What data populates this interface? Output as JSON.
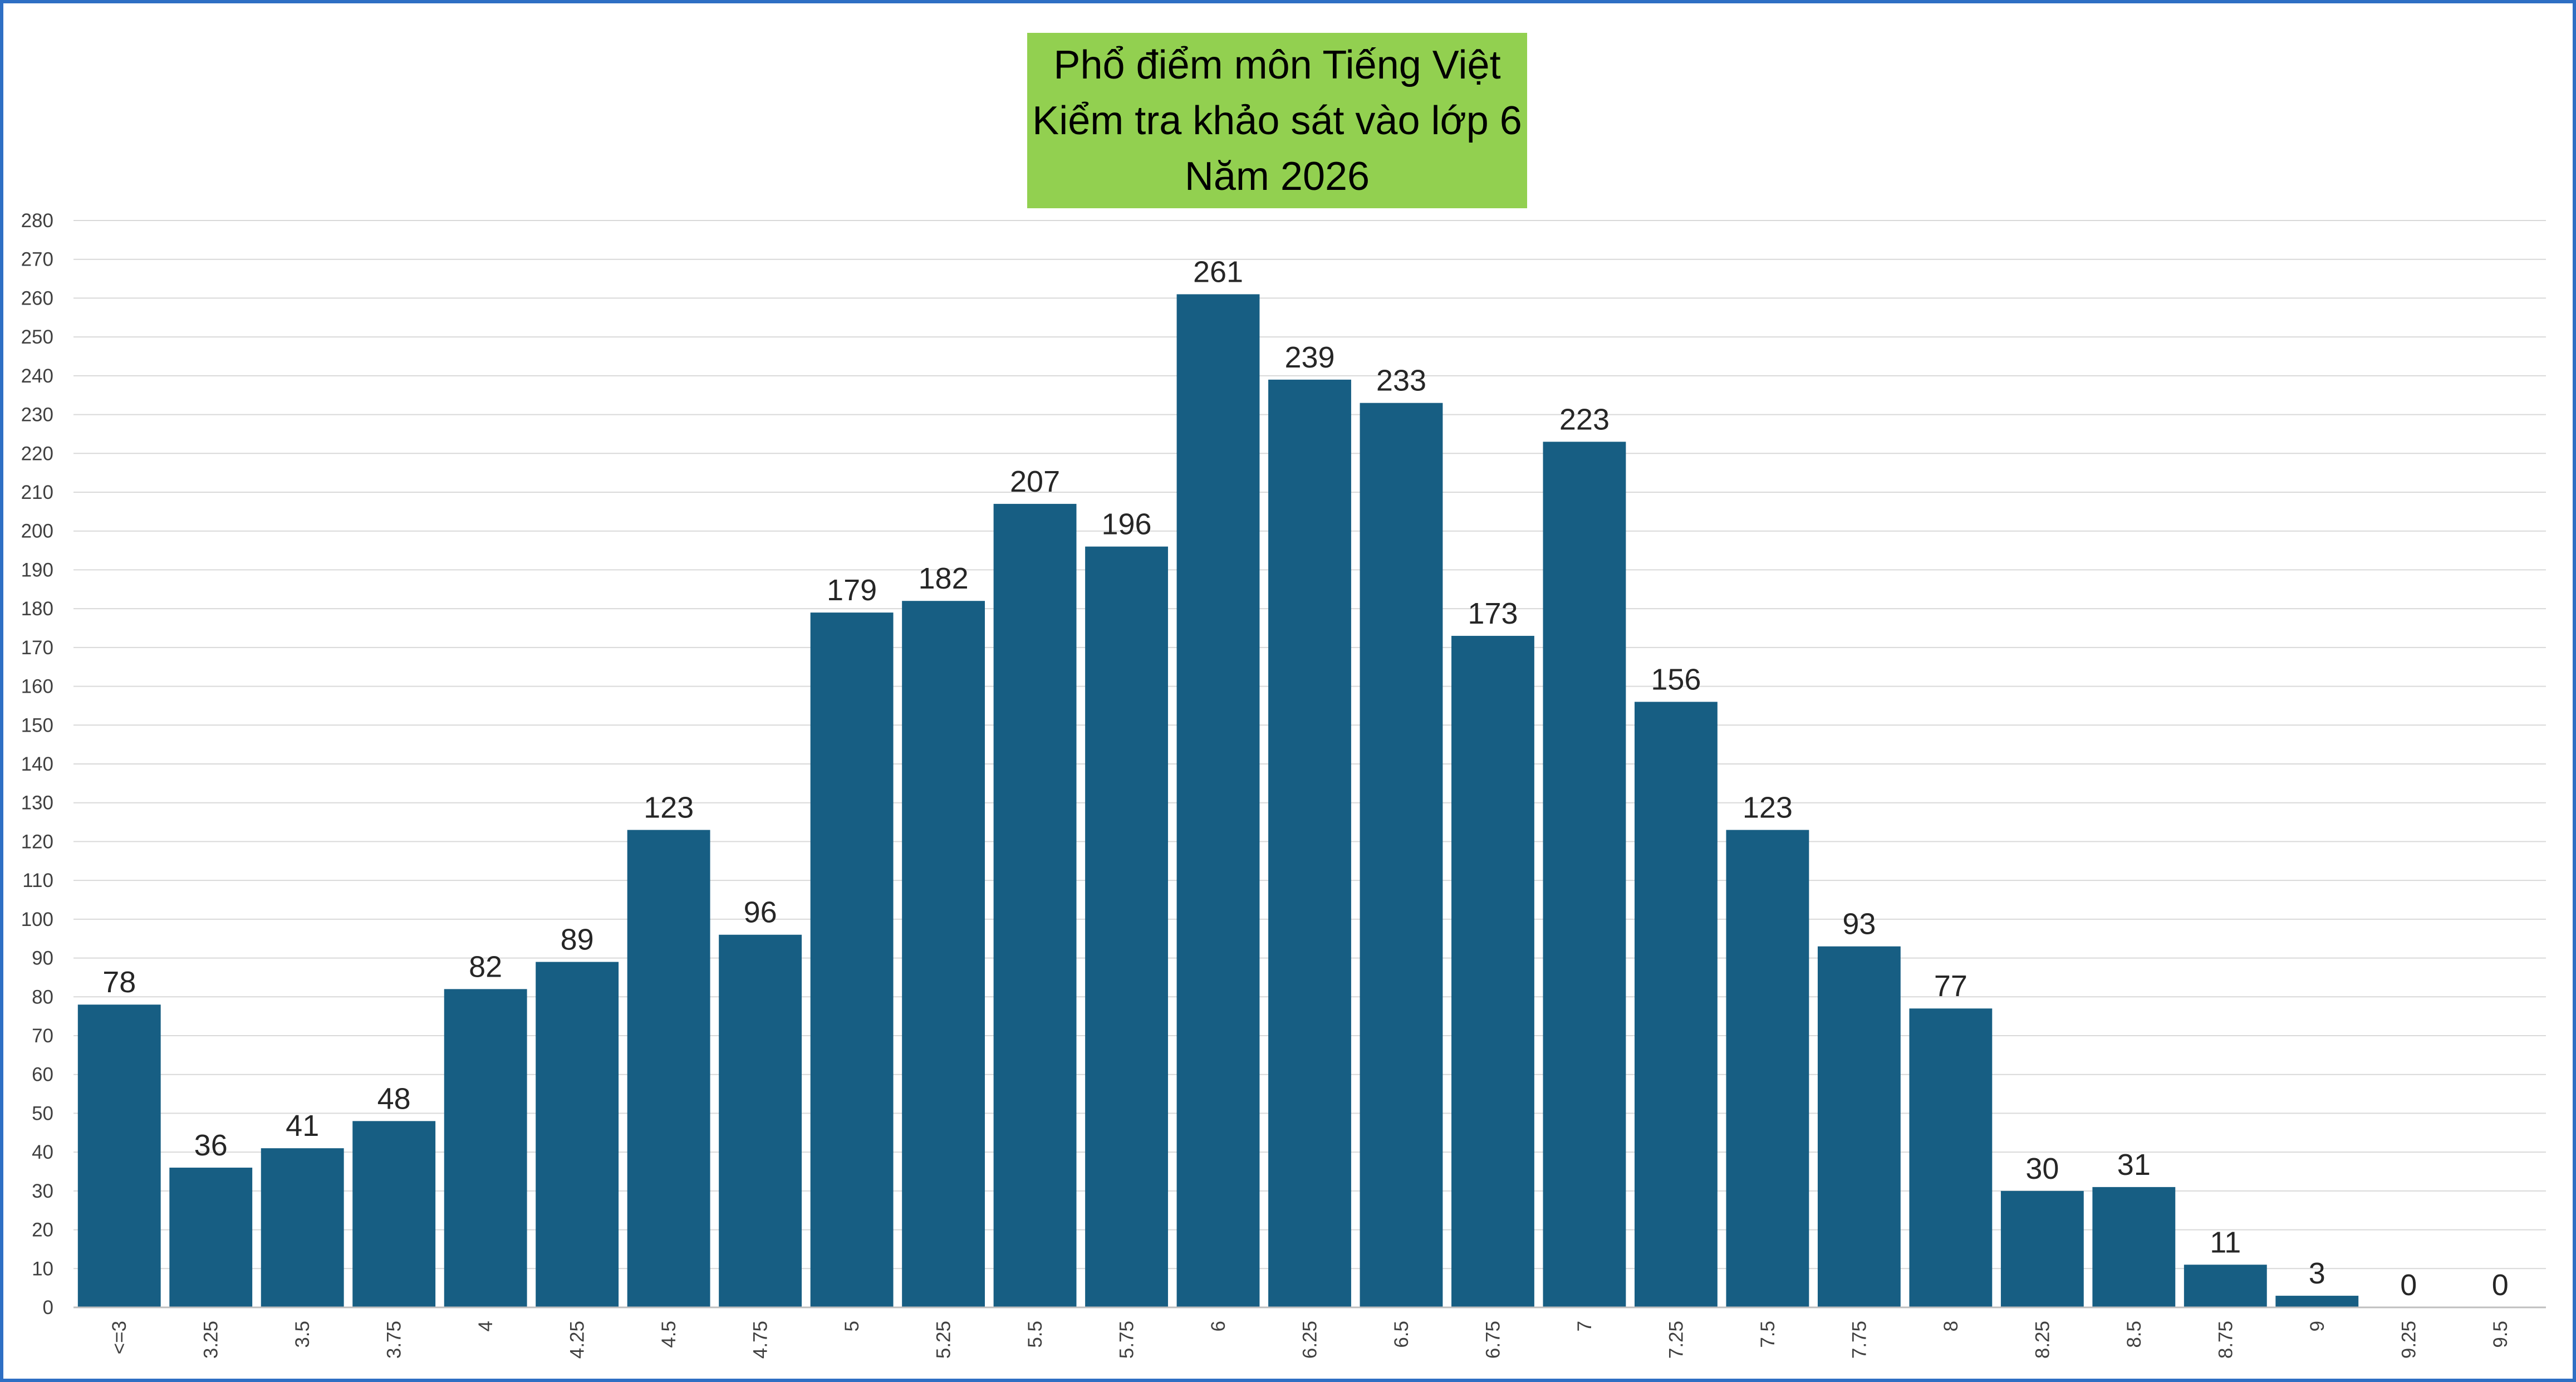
{
  "chart_data": {
    "type": "bar",
    "title_lines": [
      "Phổ điểm môn Tiếng Việt",
      "Kiểm tra khảo sát vào lớp 6",
      "Năm 2026"
    ],
    "categories": [
      "<=3",
      "3.25",
      "3.5",
      "3.75",
      "4",
      "4.25",
      "4.5",
      "4.75",
      "5",
      "5.25",
      "5.5",
      "5.75",
      "6",
      "6.25",
      "6.5",
      "6.75",
      "7",
      "7.25",
      "7.5",
      "7.75",
      "8",
      "8.25",
      "8.5",
      "8.75",
      "9",
      "9.25",
      "9.5"
    ],
    "values": [
      78,
      36,
      41,
      48,
      82,
      89,
      123,
      96,
      179,
      182,
      207,
      196,
      261,
      239,
      233,
      173,
      223,
      156,
      123,
      93,
      77,
      30,
      31,
      11,
      3,
      0,
      0
    ],
    "ylim": [
      0,
      280
    ],
    "ytick_step": 10,
    "grid": true,
    "legend": "none",
    "data_labels": true,
    "colors": {
      "bar": "#175e83",
      "title_background": "#92d050",
      "frame": "#2e6fc4",
      "grid": "#d9d9d9"
    }
  }
}
